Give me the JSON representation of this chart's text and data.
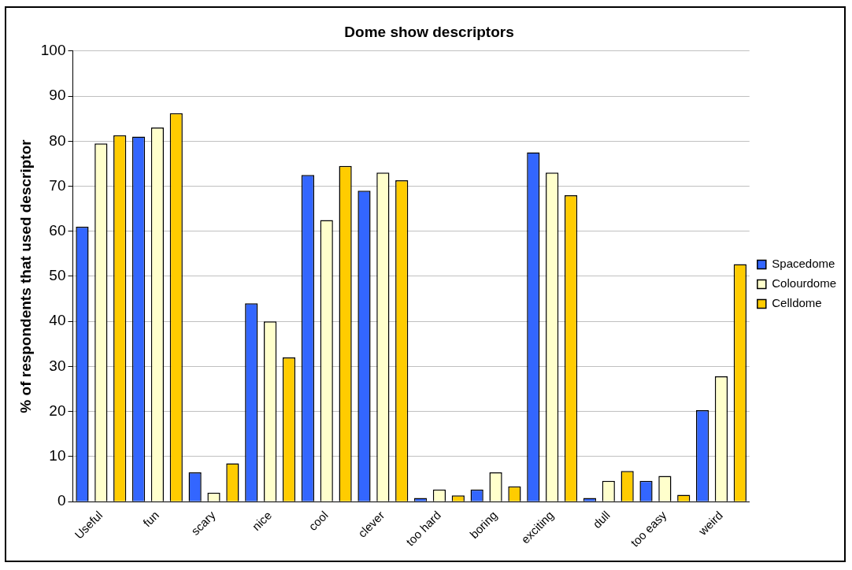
{
  "chart_data": {
    "type": "bar",
    "title": "Dome show descriptors",
    "ylabel": "% of respondents that used descriptor",
    "categories": [
      "Useful",
      "fun",
      "scary",
      "nice",
      "cool",
      "clever",
      "too hard",
      "boring",
      "exciting",
      "dull",
      "too easy",
      "weird"
    ],
    "series": [
      {
        "name": "Spacedome",
        "color": "#3366ff",
        "values": [
          61,
          81,
          6.5,
          44,
          72.5,
          69,
          0.8,
          2.7,
          77.5,
          0.8,
          4.6,
          20.3
        ]
      },
      {
        "name": "Colourdome",
        "color": "#ffffcc",
        "values": [
          79.5,
          83,
          2,
          40,
          62.5,
          73,
          2.7,
          6.5,
          73,
          4.6,
          5.7,
          27.8
        ]
      },
      {
        "name": "Celldome",
        "color": "#ffcc00",
        "values": [
          81.3,
          86.2,
          8.5,
          32,
          74.5,
          71.3,
          1.4,
          3.4,
          68,
          6.8,
          1.5,
          52.7
        ]
      }
    ],
    "ylim": [
      0,
      100
    ],
    "yticks": [
      0,
      10,
      20,
      30,
      40,
      50,
      60,
      70,
      80,
      90,
      100
    ],
    "grid": "y",
    "legend": "right"
  }
}
